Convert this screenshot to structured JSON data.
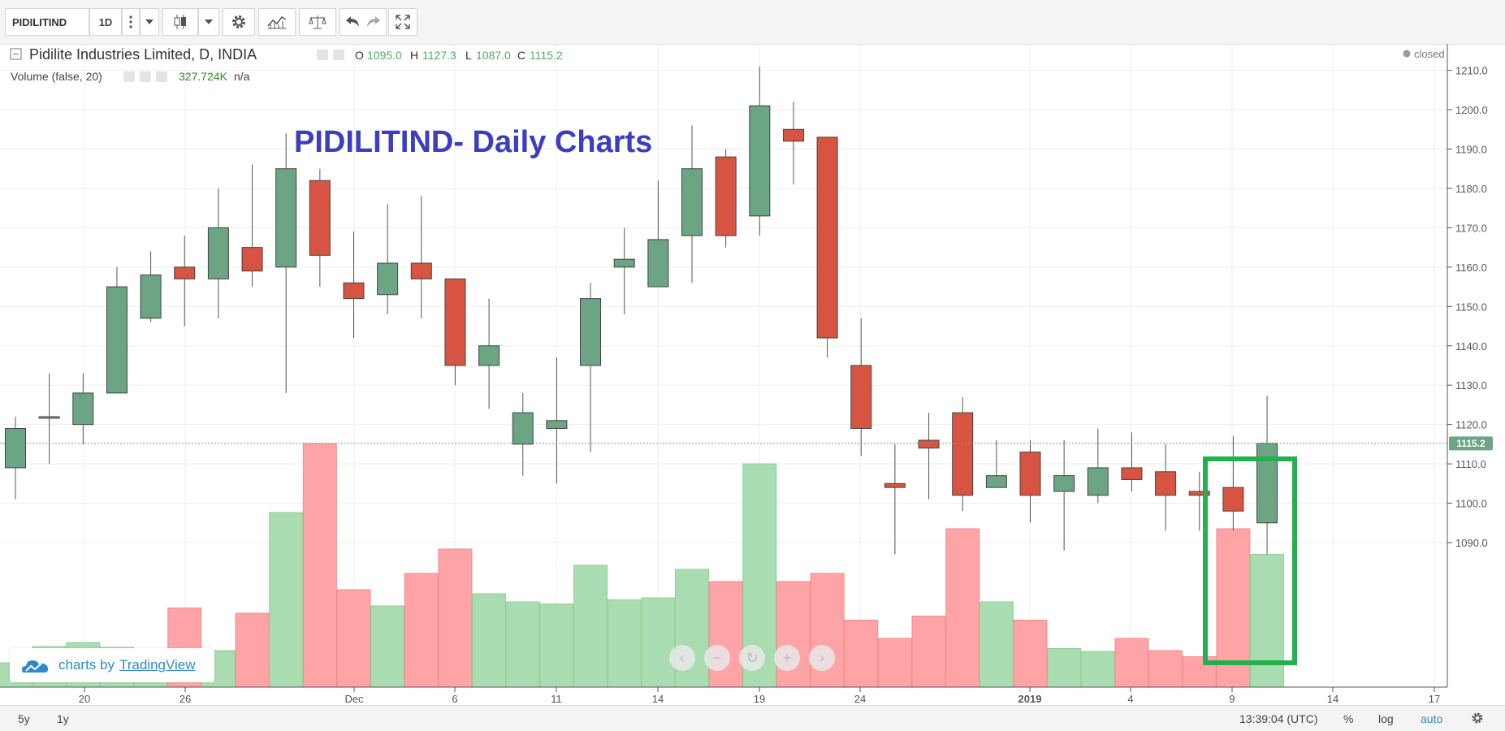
{
  "toolbar": {
    "symbol": "PIDILITIND",
    "interval": "1D",
    "buttons": [
      "more-icon",
      "dropdown-icon",
      "candles-icon",
      "dropdown-icon",
      "gear-icon",
      "indicators-icon",
      "compare-icon",
      "undo-icon",
      "redo-icon",
      "fullscreen-icon"
    ]
  },
  "legend": {
    "title": "Pidilite Industries Limited, D, INDIA",
    "open_label": "O",
    "open": "1095.0",
    "high_label": "H",
    "high": "1127.3",
    "low_label": "L",
    "low": "1087.0",
    "close_label": "C",
    "close": "1115.2",
    "volume_label": "Volume (false, 20)",
    "volume_value": "327.724K",
    "volume_na": "n/a",
    "status": "closed"
  },
  "annotation": {
    "text": "PIDILITIND- Daily Charts",
    "color": "#3b3fbf",
    "highlight_color": "#22b14c"
  },
  "bottom": {
    "range_5y": "5y",
    "range_1y": "1y",
    "time": "13:39:04 (UTC)",
    "percent": "%",
    "log": "log",
    "auto": "auto"
  },
  "branding": {
    "prefix": "charts by",
    "name": "TradingView"
  },
  "colors": {
    "up": "#6ba583",
    "down": "#d75442",
    "vol_up": "#a9dcb0",
    "vol_down": "#ffa4a6",
    "last_price_tag": "#6ba583"
  },
  "chart_data": {
    "type": "candlestick",
    "title": "PIDILITIND- Daily Charts",
    "ylim": [
      1082,
      1214
    ],
    "y_ticks": [
      1090,
      1100,
      1110,
      1120,
      1130,
      1140,
      1150,
      1160,
      1170,
      1180,
      1190,
      1200,
      1210
    ],
    "last_price": 1115.2,
    "last_price_label": "1115.2",
    "x_ticks": [
      "20",
      "26",
      "Dec",
      "6",
      "11",
      "14",
      "19",
      "24",
      "2019",
      "4",
      "9",
      "14",
      "17"
    ],
    "candles": [
      {
        "o": 1109,
        "h": 1122,
        "l": 1101,
        "c": 1119,
        "v": 60
      },
      {
        "o": 1122,
        "h": 1133,
        "l": 1110,
        "c": 1122,
        "v": 100
      },
      {
        "o": 1120,
        "h": 1133,
        "l": 1115,
        "c": 1128,
        "v": 110
      },
      {
        "o": 1128,
        "h": 1160,
        "l": 1128,
        "c": 1155,
        "v": 98
      },
      {
        "o": 1147,
        "h": 1164,
        "l": 1146,
        "c": 1158,
        "v": 90
      },
      {
        "o": 1160,
        "h": 1168,
        "l": 1145,
        "c": 1157,
        "v": 195
      },
      {
        "o": 1157,
        "h": 1180,
        "l": 1147,
        "c": 1170,
        "v": 90
      },
      {
        "o": 1165,
        "h": 1186,
        "l": 1155,
        "c": 1159,
        "v": 182
      },
      {
        "o": 1160,
        "h": 1194,
        "l": 1128,
        "c": 1185,
        "v": 430
      },
      {
        "o": 1182,
        "h": 1185,
        "l": 1155,
        "c": 1163,
        "v": 600
      },
      {
        "o": 1156,
        "h": 1169,
        "l": 1142,
        "c": 1152,
        "v": 240
      },
      {
        "o": 1153,
        "h": 1176,
        "l": 1148,
        "c": 1161,
        "v": 200
      },
      {
        "o": 1161,
        "h": 1178,
        "l": 1147,
        "c": 1157,
        "v": 280
      },
      {
        "o": 1157,
        "h": 1157,
        "l": 1130,
        "c": 1135,
        "v": 340
      },
      {
        "o": 1135,
        "h": 1152,
        "l": 1124,
        "c": 1140,
        "v": 230
      },
      {
        "o": 1115,
        "h": 1128,
        "l": 1107,
        "c": 1123,
        "v": 210
      },
      {
        "o": 1119,
        "h": 1137,
        "l": 1105,
        "c": 1121,
        "v": 205
      },
      {
        "o": 1135,
        "h": 1156,
        "l": 1113,
        "c": 1152,
        "v": 300
      },
      {
        "o": 1160,
        "h": 1170,
        "l": 1148,
        "c": 1162,
        "v": 215
      },
      {
        "o": 1155,
        "h": 1182,
        "l": 1155,
        "c": 1167,
        "v": 220
      },
      {
        "o": 1168,
        "h": 1196,
        "l": 1156,
        "c": 1185,
        "v": 290
      },
      {
        "o": 1188,
        "h": 1190,
        "l": 1165,
        "c": 1168,
        "v": 260
      },
      {
        "o": 1173,
        "h": 1211,
        "l": 1168,
        "c": 1201,
        "v": 550
      },
      {
        "o": 1195,
        "h": 1202,
        "l": 1181,
        "c": 1192,
        "v": 260
      },
      {
        "o": 1193,
        "h": 1193,
        "l": 1137,
        "c": 1142,
        "v": 280
      },
      {
        "o": 1135,
        "h": 1147,
        "l": 1112,
        "c": 1119,
        "v": 165
      },
      {
        "o": 1105,
        "h": 1115,
        "l": 1087,
        "c": 1104,
        "v": 120
      },
      {
        "o": 1116,
        "h": 1123,
        "l": 1101,
        "c": 1114,
        "v": 175
      },
      {
        "o": 1123,
        "h": 1127,
        "l": 1098,
        "c": 1102,
        "v": 390
      },
      {
        "o": 1104,
        "h": 1116,
        "l": 1104,
        "c": 1107,
        "v": 210
      },
      {
        "o": 1113,
        "h": 1116,
        "l": 1095,
        "c": 1102,
        "v": 165
      },
      {
        "o": 1103,
        "h": 1116,
        "l": 1088,
        "c": 1107,
        "v": 95
      },
      {
        "o": 1102,
        "h": 1119,
        "l": 1100,
        "c": 1109,
        "v": 88
      },
      {
        "o": 1109,
        "h": 1118,
        "l": 1103,
        "c": 1106,
        "v": 120
      },
      {
        "o": 1108,
        "h": 1115,
        "l": 1093,
        "c": 1102,
        "v": 90
      },
      {
        "o": 1103,
        "h": 1108,
        "l": 1093,
        "c": 1102,
        "v": 75
      },
      {
        "o": 1104,
        "h": 1117,
        "l": 1093,
        "c": 1098,
        "v": 390
      },
      {
        "o": 1095,
        "h": 1127.3,
        "l": 1087,
        "c": 1115.2,
        "v": 327
      }
    ]
  }
}
